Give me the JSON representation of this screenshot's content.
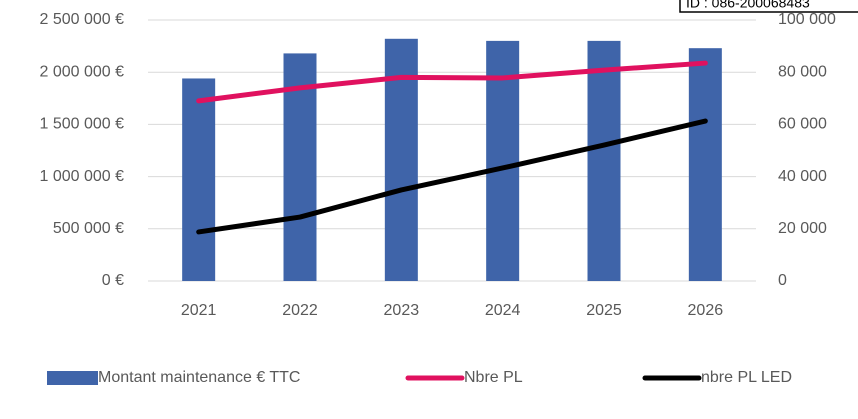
{
  "chart_data": {
    "type": "bar-line",
    "annotation": "ID : 086-200068483",
    "categories": [
      "2021",
      "2022",
      "2023",
      "2024",
      "2025",
      "2026"
    ],
    "series": [
      {
        "name": "Montant maintenance € TTC",
        "color": "#3f64a9",
        "type": "bar",
        "axis": "y",
        "values": [
          1940000,
          2180000,
          2320000,
          2300000,
          2300000,
          2230000
        ]
      },
      {
        "name": "Nbre PL",
        "color": "#e0115f",
        "type": "line",
        "axis": "y2",
        "values": [
          69000,
          74000,
          78000,
          77800,
          80800,
          83500
        ]
      },
      {
        "name": "nbre PL LED",
        "color": "#000000",
        "type": "line",
        "axis": "y2",
        "values": [
          18800,
          24500,
          34900,
          43300,
          52100,
          61300
        ]
      }
    ],
    "ylim": [
      0,
      2500000
    ],
    "yticks": [
      {
        "value": 0,
        "label": "0 €"
      },
      {
        "value": 500000,
        "label": "500 000 €"
      },
      {
        "value": 1000000,
        "label": "1 000 000 €"
      },
      {
        "value": 1500000,
        "label": "1 500 000 €"
      },
      {
        "value": 2000000,
        "label": "2 000 000 €"
      },
      {
        "value": 2500000,
        "label": "2 500 000 €"
      }
    ],
    "y2lim": [
      0,
      100000
    ],
    "y2ticks": [
      0,
      {
        "value": 20000,
        "label": "20 000"
      },
      {
        "value": 40000,
        "label": "40 000"
      },
      {
        "value": 60000,
        "label": "60 000"
      },
      {
        "value": 80000,
        "label": "80 000"
      },
      {
        "value": 100000,
        "label": "100 000"
      }
    ],
    "grid": true
  }
}
